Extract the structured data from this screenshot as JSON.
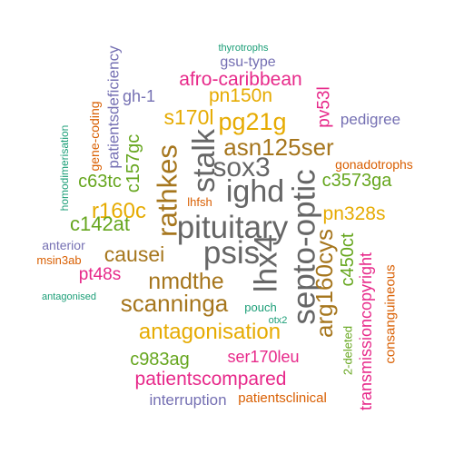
{
  "palette": {
    "teal": "#1b9e77",
    "orange": "#d95f02",
    "purple": "#7570b3",
    "magenta": "#e7298a",
    "green": "#66a61e",
    "gold": "#e6ab02",
    "brown": "#a6761d",
    "gray": "#666666"
  },
  "words": [
    {
      "text": "thyrotrophs",
      "color": "teal"
    },
    {
      "text": "gsu-type",
      "color": "purple"
    },
    {
      "text": "afro-caribbean",
      "color": "magenta"
    },
    {
      "text": "pn150n",
      "color": "gold"
    },
    {
      "text": "s170l",
      "color": "gold"
    },
    {
      "text": "pg21g",
      "color": "gold"
    },
    {
      "text": "pv53l",
      "color": "magenta"
    },
    {
      "text": "pedigree",
      "color": "purple"
    },
    {
      "text": "gh-1",
      "color": "purple"
    },
    {
      "text": "patientsdeficiency",
      "color": "purple"
    },
    {
      "text": "gene-coding",
      "color": "orange"
    },
    {
      "text": "homodimerisation",
      "color": "teal"
    },
    {
      "text": "c157gc",
      "color": "green"
    },
    {
      "text": "stalk",
      "color": "gray"
    },
    {
      "text": "sox3",
      "color": "gray"
    },
    {
      "text": "asn125ser",
      "color": "brown"
    },
    {
      "text": "gonadotrophs",
      "color": "orange"
    },
    {
      "text": "rathkes",
      "color": "brown"
    },
    {
      "text": "ighd",
      "color": "gray"
    },
    {
      "text": "c63tc",
      "color": "green"
    },
    {
      "text": "c3573ga",
      "color": "green"
    },
    {
      "text": "r160c",
      "color": "gold"
    },
    {
      "text": "lhfsh",
      "color": "orange"
    },
    {
      "text": "septo-optic",
      "color": "gray"
    },
    {
      "text": "pn328s",
      "color": "gold"
    },
    {
      "text": "c142at",
      "color": "green"
    },
    {
      "text": "pituitary",
      "color": "gray"
    },
    {
      "text": "anterior",
      "color": "purple"
    },
    {
      "text": "causei",
      "color": "brown"
    },
    {
      "text": "psis",
      "color": "gray"
    },
    {
      "text": "lhx4",
      "color": "gray"
    },
    {
      "text": "arg160cys",
      "color": "brown"
    },
    {
      "text": "c450ct",
      "color": "green"
    },
    {
      "text": "transmissioncopyright",
      "color": "magenta"
    },
    {
      "text": "consanguineous",
      "color": "orange"
    },
    {
      "text": "msin3ab",
      "color": "orange"
    },
    {
      "text": "pt48s",
      "color": "magenta"
    },
    {
      "text": "nmdthe",
      "color": "brown"
    },
    {
      "text": "antagonised",
      "color": "teal"
    },
    {
      "text": "scanninga",
      "color": "brown"
    },
    {
      "text": "pouch",
      "color": "teal"
    },
    {
      "text": "otx2",
      "color": "teal"
    },
    {
      "text": "antagonisation",
      "color": "gold"
    },
    {
      "text": "2-deleted",
      "color": "green"
    },
    {
      "text": "c983ag",
      "color": "green"
    },
    {
      "text": "ser170leu",
      "color": "magenta"
    },
    {
      "text": "patientscompared",
      "color": "magenta"
    },
    {
      "text": "interruption",
      "color": "purple"
    },
    {
      "text": "patientsclinical",
      "color": "orange"
    }
  ]
}
